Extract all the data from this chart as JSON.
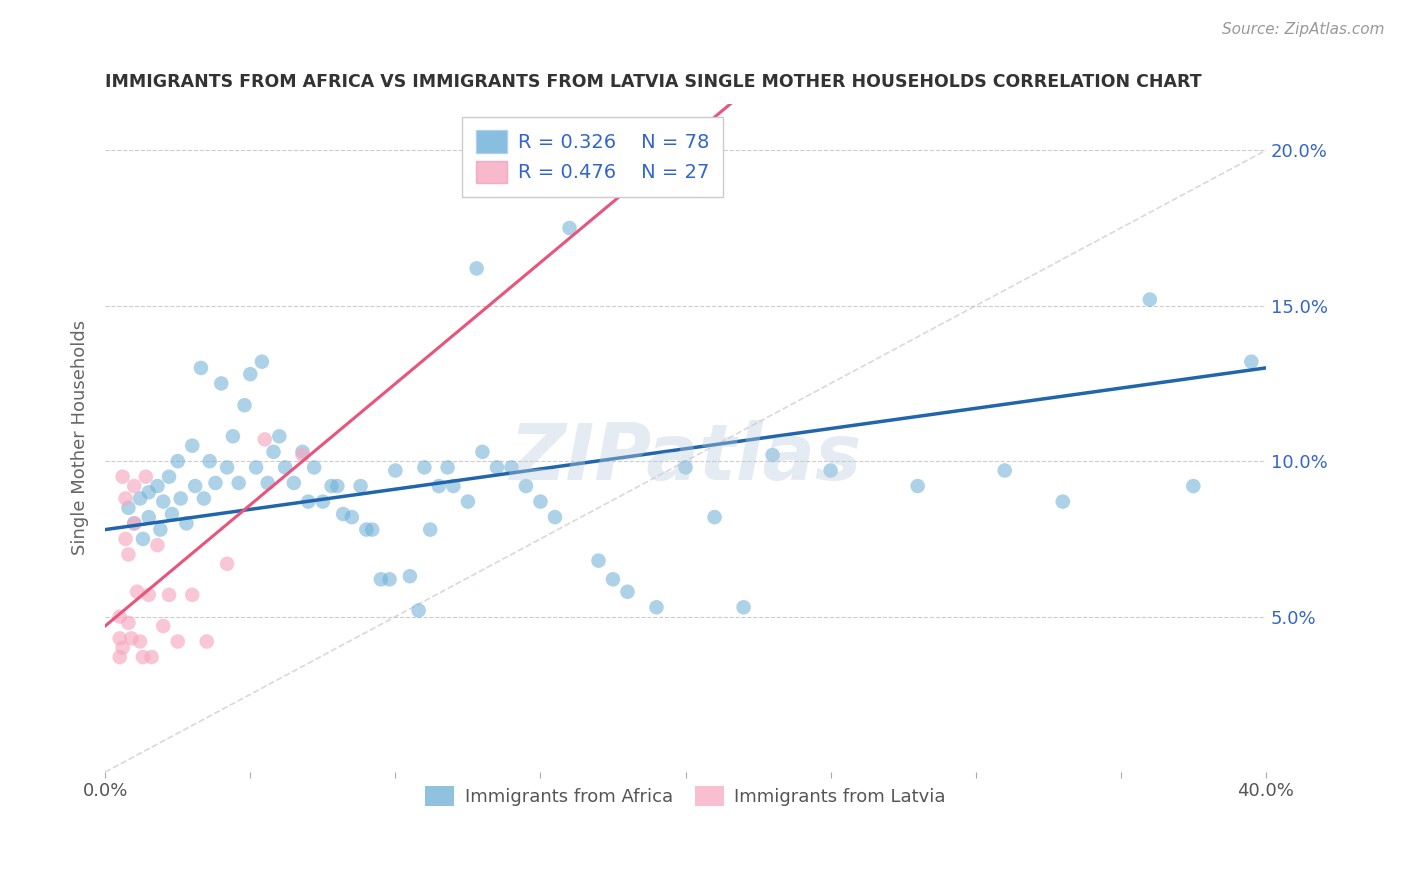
{
  "title": "IMMIGRANTS FROM AFRICA VS IMMIGRANTS FROM LATVIA SINGLE MOTHER HOUSEHOLDS CORRELATION CHART",
  "source": "Source: ZipAtlas.com",
  "ylabel": "Single Mother Households",
  "yticks": [
    0.0,
    0.05,
    0.1,
    0.15,
    0.2
  ],
  "ytick_labels": [
    "",
    "5.0%",
    "10.0%",
    "15.0%",
    "20.0%"
  ],
  "xticks": [
    0.0,
    0.05,
    0.1,
    0.15,
    0.2,
    0.25,
    0.3,
    0.35,
    0.4
  ],
  "xlim": [
    0.0,
    0.4
  ],
  "ylim": [
    0.0,
    0.215
  ],
  "legend_africa_r": "R = 0.326",
  "legend_africa_n": "N = 78",
  "legend_latvia_r": "R = 0.476",
  "legend_latvia_n": "N = 27",
  "color_africa": "#6baed6",
  "color_latvia": "#f7a8c0",
  "color_africa_line": "#2166ac",
  "color_latvia_line": "#e8547a",
  "color_diagonal": "#ccbbbb",
  "watermark": "ZIPatlas",
  "africa_x": [
    0.008,
    0.01,
    0.012,
    0.013,
    0.015,
    0.015,
    0.018,
    0.019,
    0.02,
    0.022,
    0.023,
    0.025,
    0.026,
    0.028,
    0.03,
    0.031,
    0.033,
    0.034,
    0.036,
    0.038,
    0.04,
    0.042,
    0.044,
    0.046,
    0.048,
    0.05,
    0.052,
    0.054,
    0.056,
    0.058,
    0.06,
    0.062,
    0.065,
    0.068,
    0.07,
    0.072,
    0.075,
    0.078,
    0.08,
    0.082,
    0.085,
    0.088,
    0.09,
    0.092,
    0.095,
    0.098,
    0.1,
    0.105,
    0.108,
    0.11,
    0.112,
    0.115,
    0.118,
    0.12,
    0.125,
    0.128,
    0.13,
    0.135,
    0.14,
    0.145,
    0.15,
    0.155,
    0.16,
    0.17,
    0.175,
    0.18,
    0.19,
    0.2,
    0.21,
    0.22,
    0.23,
    0.25,
    0.28,
    0.31,
    0.33,
    0.36,
    0.375,
    0.395
  ],
  "africa_y": [
    0.085,
    0.08,
    0.088,
    0.075,
    0.09,
    0.082,
    0.092,
    0.078,
    0.087,
    0.095,
    0.083,
    0.1,
    0.088,
    0.08,
    0.105,
    0.092,
    0.13,
    0.088,
    0.1,
    0.093,
    0.125,
    0.098,
    0.108,
    0.093,
    0.118,
    0.128,
    0.098,
    0.132,
    0.093,
    0.103,
    0.108,
    0.098,
    0.093,
    0.103,
    0.087,
    0.098,
    0.087,
    0.092,
    0.092,
    0.083,
    0.082,
    0.092,
    0.078,
    0.078,
    0.062,
    0.062,
    0.097,
    0.063,
    0.052,
    0.098,
    0.078,
    0.092,
    0.098,
    0.092,
    0.087,
    0.162,
    0.103,
    0.098,
    0.098,
    0.092,
    0.087,
    0.082,
    0.175,
    0.068,
    0.062,
    0.058,
    0.053,
    0.098,
    0.082,
    0.053,
    0.102,
    0.097,
    0.092,
    0.097,
    0.087,
    0.152,
    0.092,
    0.132
  ],
  "latvia_x": [
    0.005,
    0.005,
    0.005,
    0.006,
    0.006,
    0.007,
    0.007,
    0.008,
    0.008,
    0.009,
    0.01,
    0.01,
    0.011,
    0.012,
    0.013,
    0.014,
    0.015,
    0.016,
    0.018,
    0.02,
    0.022,
    0.025,
    0.03,
    0.035,
    0.042,
    0.055,
    0.068
  ],
  "latvia_y": [
    0.05,
    0.043,
    0.037,
    0.095,
    0.04,
    0.088,
    0.075,
    0.07,
    0.048,
    0.043,
    0.092,
    0.08,
    0.058,
    0.042,
    0.037,
    0.095,
    0.057,
    0.037,
    0.073,
    0.047,
    0.057,
    0.042,
    0.057,
    0.042,
    0.067,
    0.107,
    0.102
  ]
}
